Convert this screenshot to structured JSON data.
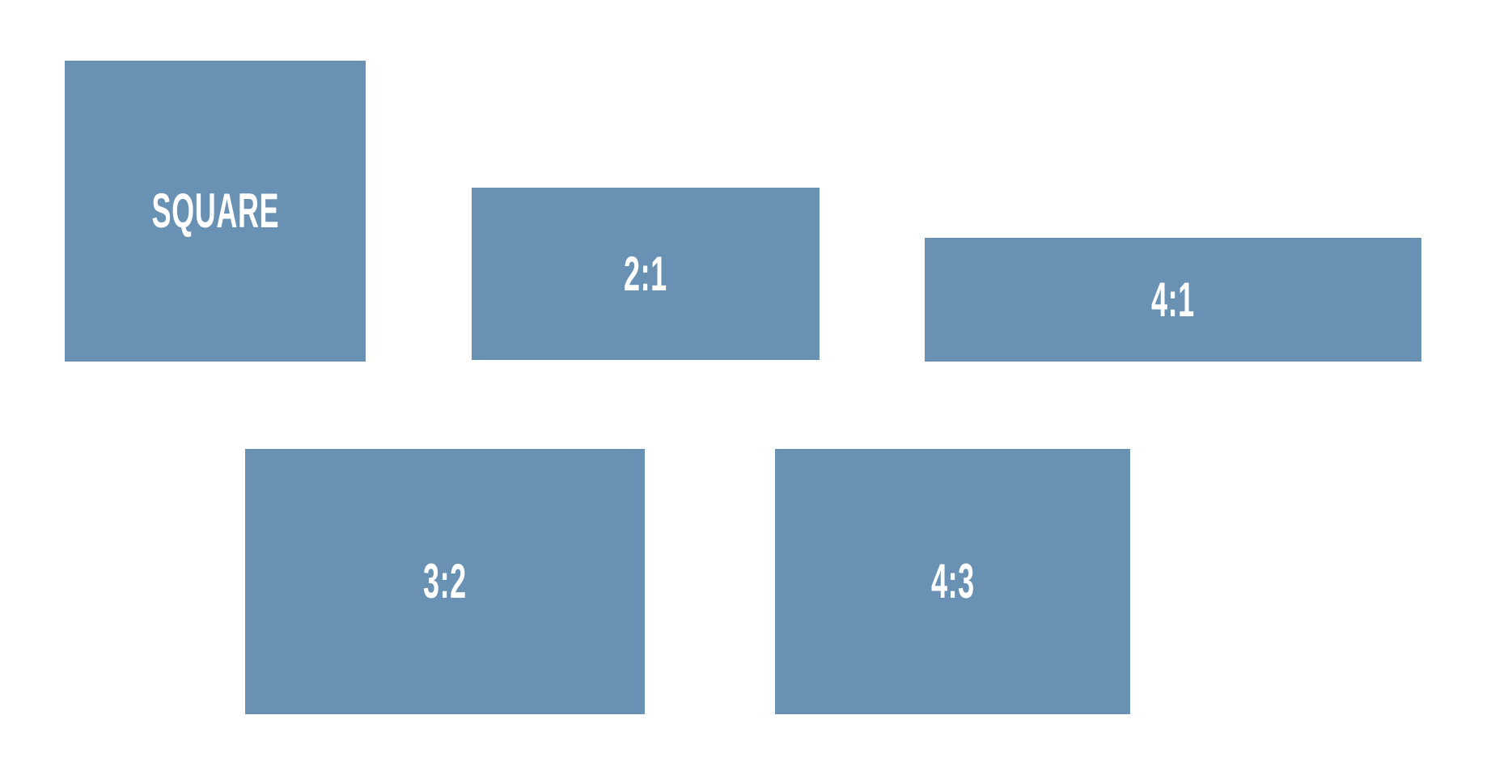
{
  "page": {
    "title": "Aspect ratio comparison diagram",
    "background_color": "#ffffff"
  },
  "colors": {
    "box_fill": "#6991b4",
    "label_text": "#ffffff"
  },
  "boxes": [
    {
      "id": "square",
      "label": "SQUARE"
    },
    {
      "id": "2-1",
      "label": "2:1"
    },
    {
      "id": "4-1",
      "label": "4:1"
    },
    {
      "id": "3-2",
      "label": "3:2"
    },
    {
      "id": "4-3",
      "label": "4:3"
    }
  ]
}
